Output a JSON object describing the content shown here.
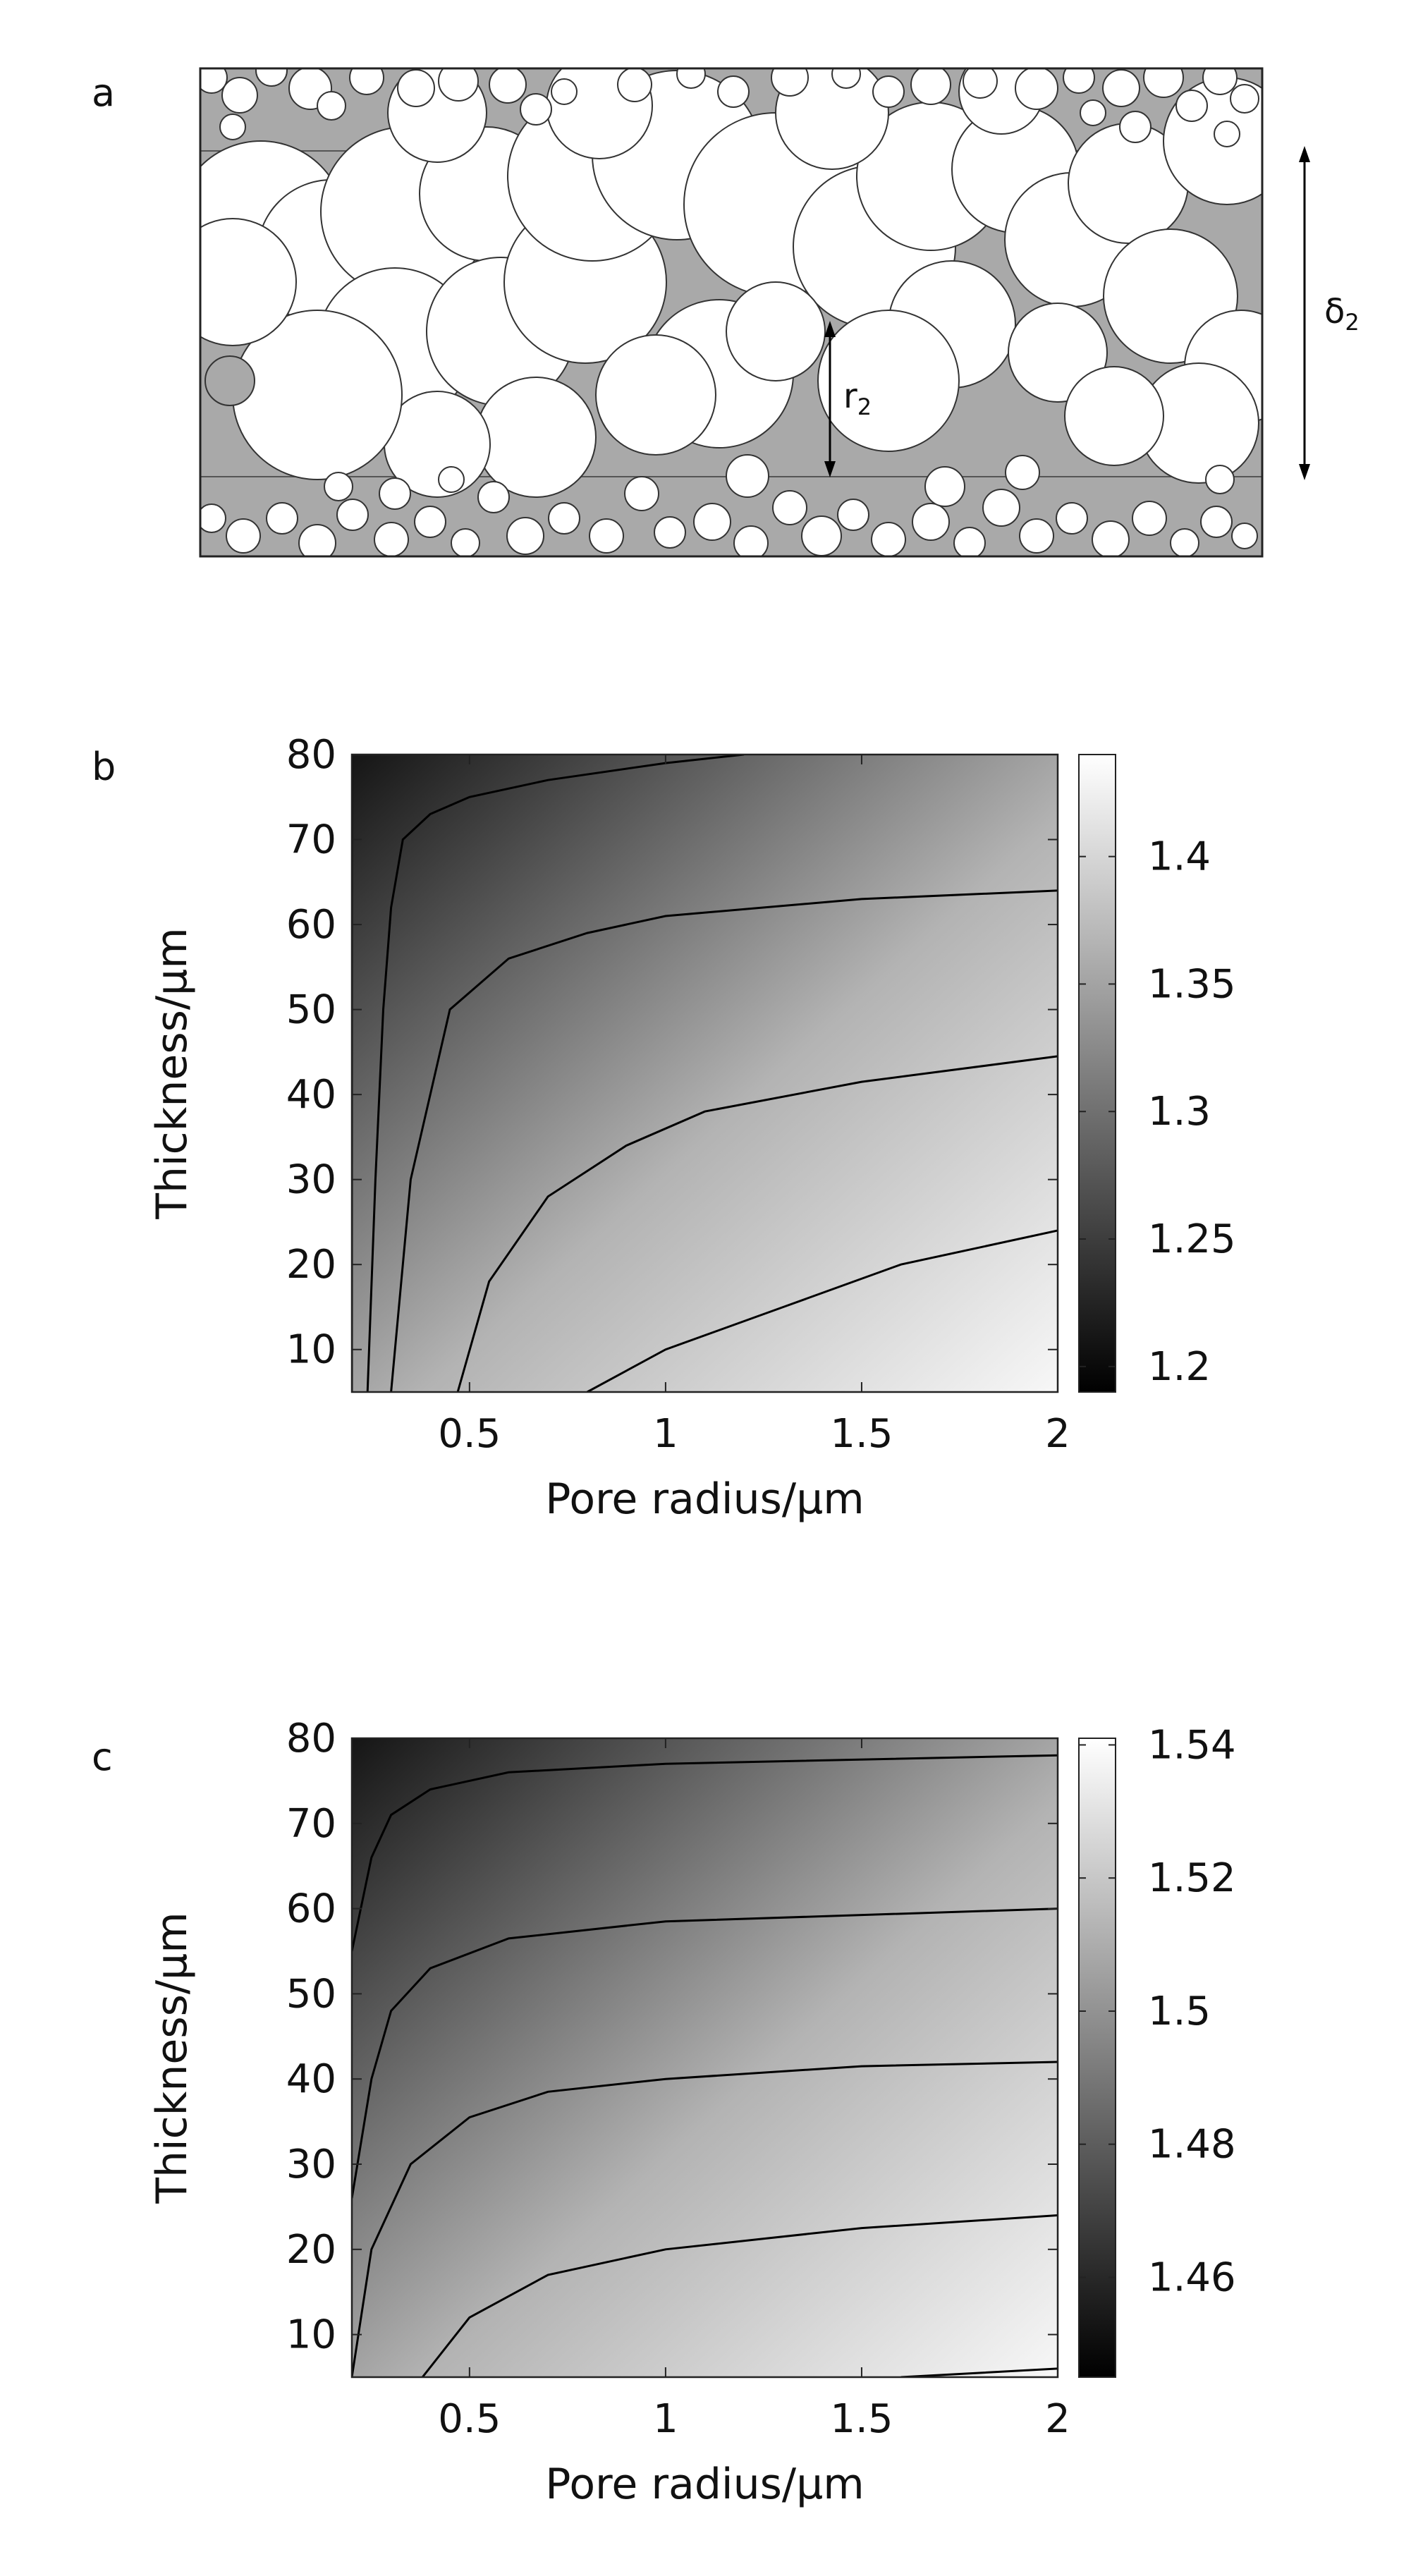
{
  "panels": {
    "a": {
      "label": "a",
      "annotations": {
        "pore_radius": "r",
        "pore_radius_sub": "2",
        "thickness": "δ",
        "thickness_sub": "2"
      },
      "colors": {
        "solid": "#a9a9a9",
        "pore": "#ffffff",
        "border": "#333333"
      }
    },
    "b": {
      "label": "b"
    },
    "c": {
      "label": "c"
    }
  },
  "chart_data": [
    {
      "type": "heatmap",
      "panel": "b",
      "title": "",
      "xlabel": "Pore radius/μm",
      "ylabel": "Thickness/μm",
      "xlim": [
        0.2,
        2
      ],
      "ylim": [
        5,
        80
      ],
      "xticks": [
        0.5,
        1,
        1.5,
        2
      ],
      "yticks": [
        10,
        20,
        30,
        40,
        50,
        60,
        70,
        80
      ],
      "colorbar": {
        "min": 1.19,
        "max": 1.44,
        "ticks": [
          1.2,
          1.25,
          1.3,
          1.35,
          1.4
        ],
        "colormap": "gray",
        "placement": "right"
      },
      "contours": [
        {
          "points": [
            [
              0.2,
              5
            ],
            [
              0.2,
              80
            ]
          ]
        },
        {
          "points": [
            [
              0.24,
              5
            ],
            [
              0.26,
              30
            ],
            [
              0.28,
              50
            ],
            [
              0.3,
              62
            ],
            [
              0.33,
              70
            ],
            [
              0.4,
              73
            ],
            [
              0.5,
              75
            ],
            [
              0.7,
              77
            ],
            [
              1.0,
              79
            ],
            [
              1.2,
              80
            ]
          ]
        },
        {
          "points": [
            [
              0.3,
              5
            ],
            [
              0.35,
              30
            ],
            [
              0.45,
              50
            ],
            [
              0.6,
              56
            ],
            [
              0.8,
              59
            ],
            [
              1.0,
              61
            ],
            [
              1.5,
              63
            ],
            [
              2.0,
              64
            ]
          ]
        },
        {
          "points": [
            [
              0.47,
              5
            ],
            [
              0.55,
              18
            ],
            [
              0.7,
              28
            ],
            [
              0.9,
              34
            ],
            [
              1.1,
              38
            ],
            [
              1.5,
              41.5
            ],
            [
              2.0,
              44.5
            ]
          ]
        },
        {
          "points": [
            [
              0.8,
              5
            ],
            [
              1.0,
              10
            ],
            [
              1.3,
              15
            ],
            [
              1.6,
              20
            ],
            [
              2.0,
              24
            ]
          ]
        }
      ]
    },
    {
      "type": "heatmap",
      "panel": "c",
      "title": "",
      "xlabel": "Pore radius/μm",
      "ylabel": "Thickness/μm",
      "xlim": [
        0.2,
        2
      ],
      "ylim": [
        5,
        80
      ],
      "xticks": [
        0.5,
        1,
        1.5,
        2
      ],
      "yticks": [
        10,
        20,
        30,
        40,
        50,
        60,
        70,
        80
      ],
      "colorbar": {
        "min": 1.445,
        "max": 1.541,
        "ticks": [
          1.46,
          1.48,
          1.5,
          1.52,
          1.54
        ],
        "colormap": "gray",
        "placement": "right"
      },
      "contours": [
        {
          "points": [
            [
              0.2,
              55
            ],
            [
              0.25,
              66
            ],
            [
              0.3,
              71
            ],
            [
              0.4,
              74
            ],
            [
              0.6,
              76
            ],
            [
              1.0,
              77
            ],
            [
              2.0,
              78
            ]
          ]
        },
        {
          "points": [
            [
              0.2,
              26
            ],
            [
              0.25,
              40
            ],
            [
              0.3,
              48
            ],
            [
              0.4,
              53
            ],
            [
              0.6,
              56.5
            ],
            [
              1.0,
              58.5
            ],
            [
              2.0,
              60
            ]
          ]
        },
        {
          "points": [
            [
              0.2,
              5
            ],
            [
              0.25,
              20
            ],
            [
              0.35,
              30
            ],
            [
              0.5,
              35.5
            ],
            [
              0.7,
              38.5
            ],
            [
              1.0,
              40
            ],
            [
              1.5,
              41.5
            ],
            [
              2.0,
              42
            ]
          ]
        },
        {
          "points": [
            [
              0.38,
              5
            ],
            [
              0.5,
              12
            ],
            [
              0.7,
              17
            ],
            [
              1.0,
              20
            ],
            [
              1.5,
              22.5
            ],
            [
              2.0,
              24
            ]
          ]
        },
        {
          "points": [
            [
              1.6,
              5
            ],
            [
              1.8,
              5.5
            ],
            [
              2.0,
              6
            ]
          ]
        }
      ]
    }
  ]
}
